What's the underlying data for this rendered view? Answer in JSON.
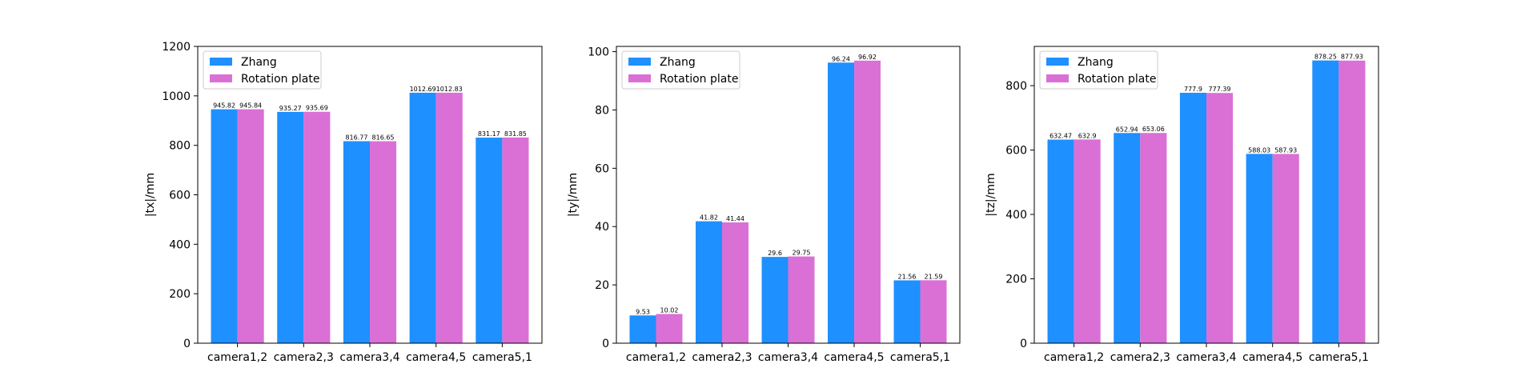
{
  "colors": {
    "zhang": "#1e90ff",
    "rotation": "#da70d6"
  },
  "chart_data": [
    {
      "type": "bar",
      "categories": [
        "camera1,2",
        "camera2,3",
        "camera3,4",
        "camera4,5",
        "camera5,1"
      ],
      "series": [
        {
          "name": "Zhang",
          "values": [
            945.82,
            935.27,
            816.77,
            1012.69,
            831.17
          ]
        },
        {
          "name": "Rotation plate",
          "values": [
            945.84,
            935.69,
            816.65,
            1012.83,
            831.85
          ]
        }
      ],
      "value_labels": [
        [
          "945.82",
          "935.27",
          "816.77",
          "1012.69",
          "831.17"
        ],
        [
          "945.84",
          "935.69",
          "816.65",
          "1012.83",
          "831.85"
        ]
      ],
      "ylabel": "|tx|/mm",
      "ylim": [
        0,
        1200
      ],
      "yticks": [
        0,
        200,
        400,
        600,
        800,
        1000,
        1200
      ],
      "grid": false,
      "legend": "upper-left"
    },
    {
      "type": "bar",
      "categories": [
        "camera1,2",
        "camera2,3",
        "camera3,4",
        "camera4,5",
        "camera5,1"
      ],
      "series": [
        {
          "name": "Zhang",
          "values": [
            9.53,
            41.82,
            29.6,
            96.24,
            21.56
          ]
        },
        {
          "name": "Rotation plate",
          "values": [
            10.02,
            41.44,
            29.75,
            96.92,
            21.59
          ]
        }
      ],
      "value_labels": [
        [
          "9.53",
          "41.82",
          "29.6",
          "96.24",
          "21.56"
        ],
        [
          "10.02",
          "41.44",
          "29.75",
          "96.92",
          "21.59"
        ]
      ],
      "ylabel": "|ty|/mm",
      "ylim": [
        0,
        101.8
      ],
      "yticks": [
        0,
        20,
        40,
        60,
        80,
        100
      ],
      "grid": false,
      "legend": "upper-left"
    },
    {
      "type": "bar",
      "categories": [
        "camera1,2",
        "camera2,3",
        "camera3,4",
        "camera4,5",
        "camera5,1"
      ],
      "series": [
        {
          "name": "Zhang",
          "values": [
            632.47,
            652.94,
            777.9,
            588.03,
            878.25
          ]
        },
        {
          "name": "Rotation plate",
          "values": [
            632.9,
            653.06,
            777.39,
            587.93,
            877.93
          ]
        }
      ],
      "value_labels": [
        [
          "632.47",
          "652.94",
          "777.9",
          "588.03",
          "878.25"
        ],
        [
          "632.9",
          "653.06",
          "777.39",
          "587.93",
          "877.93"
        ]
      ],
      "ylabel": "|tz|/mm",
      "ylim": [
        0,
        922
      ],
      "yticks": [
        0,
        200,
        400,
        600,
        800
      ],
      "grid": false,
      "legend": "upper-left"
    }
  ]
}
